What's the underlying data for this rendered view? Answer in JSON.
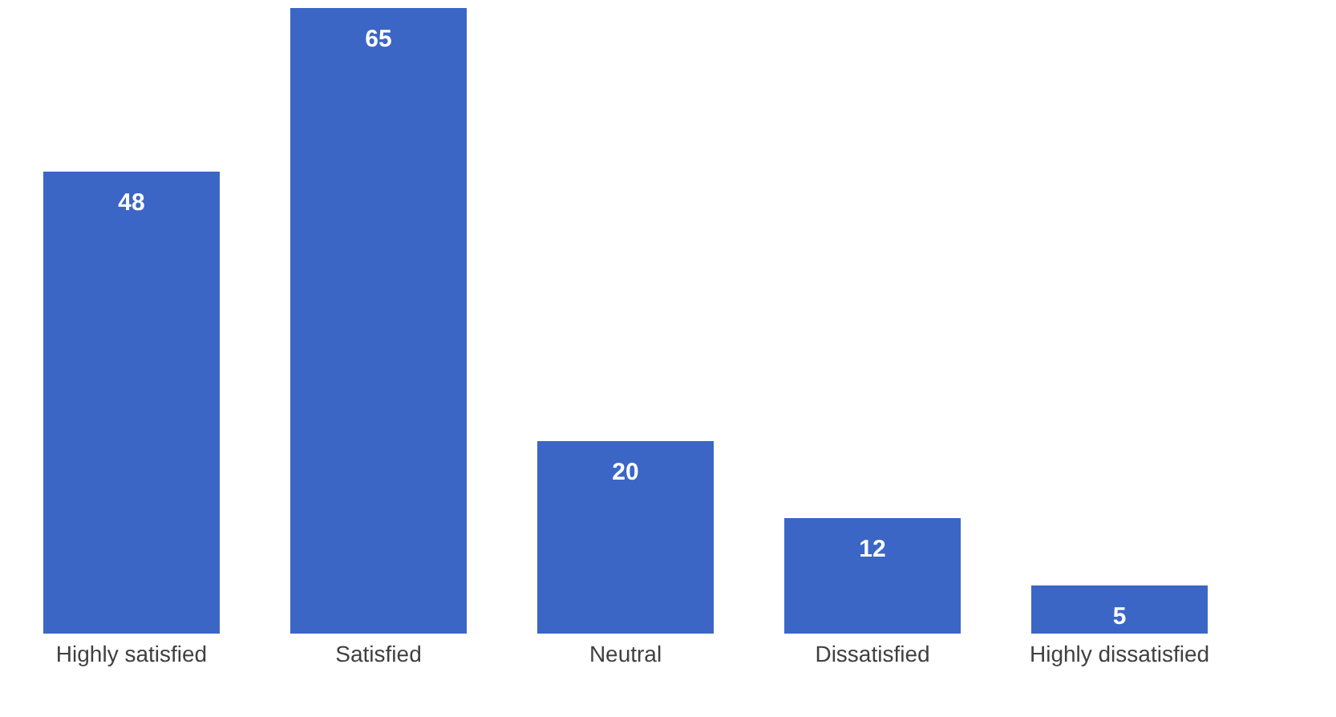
{
  "chart_data": {
    "type": "bar",
    "categories": [
      "Highly satisfied",
      "Satisfied",
      "Neutral",
      "Dissatisfied",
      "Highly dissatisfied"
    ],
    "values": [
      48,
      65,
      20,
      12,
      5
    ],
    "color": "#3b66c6",
    "data_labels": true
  }
}
